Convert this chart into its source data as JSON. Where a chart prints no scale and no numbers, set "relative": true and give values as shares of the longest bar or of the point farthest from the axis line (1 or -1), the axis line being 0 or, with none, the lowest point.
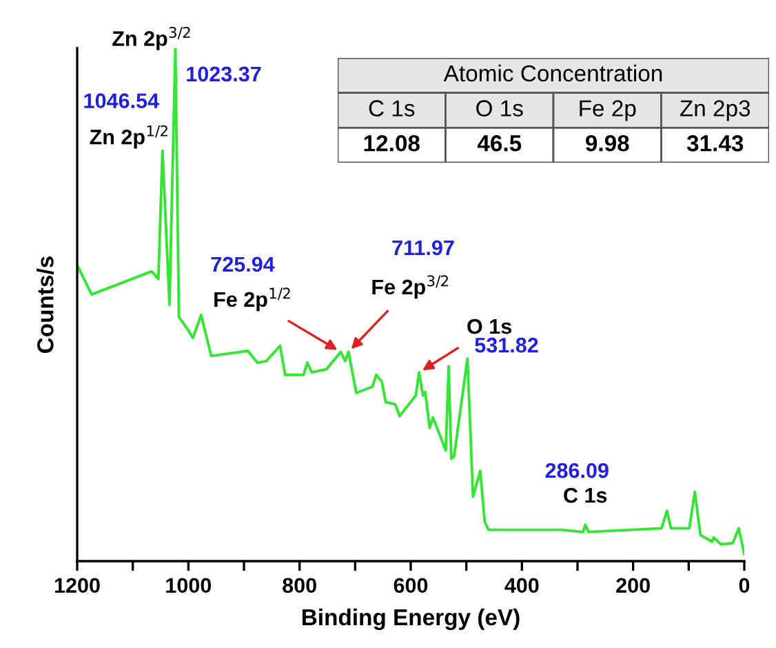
{
  "chart_data": [
    {
      "type": "line",
      "relative": true,
      "xlabel": "Binding Energy (eV)",
      "ylabel": "Counts/s",
      "xlim": [
        1200,
        0
      ],
      "xticks": [
        1200,
        {
          "value": 1100,
          "label": null
        },
        1000,
        {
          "value": 900,
          "label": null
        },
        800,
        {
          "value": 700,
          "label": null
        },
        600,
        {
          "value": 500,
          "label": null
        },
        400,
        {
          "value": 300,
          "label": null
        },
        200,
        {
          "value": 100,
          "label": null
        },
        0
      ],
      "tick_labels": "x",
      "grid": false,
      "legend": false,
      "series": [
        {
          "color": "#33e633",
          "x": [
            1199,
            1174,
            1066,
            1054,
            1046.54,
            1034,
            1023.37,
            1017,
            1000,
            992,
            977,
            959,
            893,
            876,
            860,
            835,
            826,
            793,
            786,
            778,
            752,
            725.94,
            718,
            711.97,
            698,
            669,
            662,
            652,
            645,
            628,
            620,
            591,
            585,
            578,
            574,
            566,
            560,
            537,
            531.82,
            527,
            522,
            498,
            488,
            475,
            467,
            460,
            328,
            290,
            286.09,
            280,
            149,
            139,
            132,
            99,
            89,
            79,
            58,
            55,
            42,
            21,
            10,
            0
          ],
          "values": [
            0.575,
            0.52,
            0.565,
            0.55,
            0.8,
            0.5,
            1.0,
            0.476,
            0.45,
            0.435,
            0.48,
            0.4,
            0.41,
            0.387,
            0.39,
            0.42,
            0.363,
            0.363,
            0.387,
            0.368,
            0.374,
            0.408,
            0.39,
            0.408,
            0.328,
            0.34,
            0.363,
            0.35,
            0.31,
            0.306,
            0.283,
            0.323,
            0.368,
            0.323,
            0.33,
            0.26,
            0.28,
            0.216,
            0.38,
            0.2,
            0.205,
            0.395,
            0.126,
            0.176,
            0.077,
            0.061,
            0.061,
            0.057,
            0.071,
            0.057,
            0.064,
            0.098,
            0.064,
            0.064,
            0.135,
            0.051,
            0.038,
            0.046,
            0.033,
            0.035,
            0.064,
            0.014
          ]
        }
      ],
      "annotations": [
        {
          "text": "1046.54",
          "x": 1046.54,
          "y": 0.8
        },
        {
          "text": "Zn 2p$^{1/2}$",
          "x": 1046.54,
          "y": 0.8
        },
        {
          "text": "1023.37",
          "x": 1023.37,
          "y": 1.0
        },
        {
          "text": "Zn 2p$^{3/2}$",
          "x": 1023.37,
          "y": 1.0
        },
        "725.94",
        {
          "text": "Fe 2p$^{1/2}$",
          "x": 725.94,
          "y": 0.408
        },
        "711.97",
        {
          "text": "Fe 2p$^{3/2}$",
          "x": 711.97,
          "y": 0.408
        },
        {
          "text": "531.82",
          "x": 531.82,
          "y": 0.38
        },
        {
          "text": "O 1s",
          "x": 585,
          "y": 0.368
        },
        {
          "text": "286.09",
          "x": 286.09,
          "y": 0.071
        },
        {
          "text": "C 1s",
          "x": 286.09,
          "y": 0.071
        }
      ]
    },
    {
      "type": "other",
      "data_labels": true,
      "title": "Atomic Concentration",
      "categories": [
        "C 1s",
        "O 1s",
        "Fe 2p",
        "Zn 2p3"
      ],
      "values": [
        12.08,
        46.5,
        9.98,
        31.43
      ]
    }
  ]
}
